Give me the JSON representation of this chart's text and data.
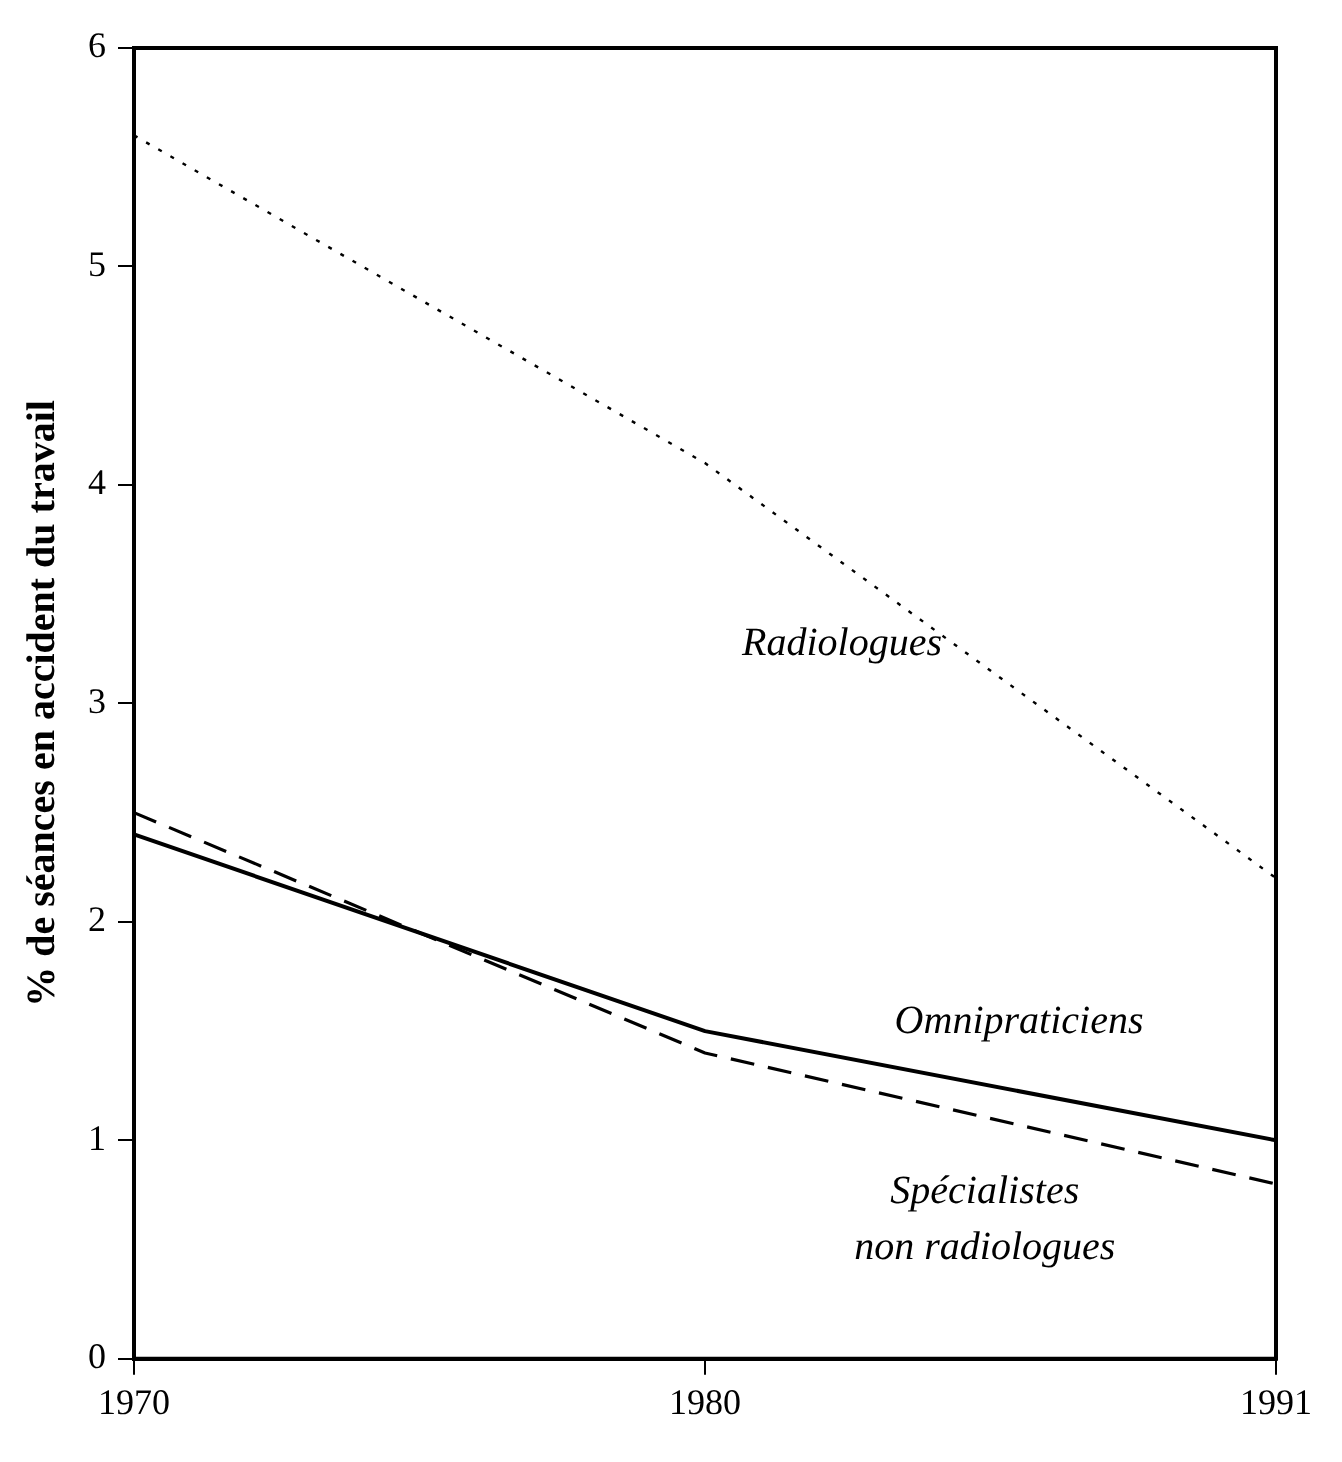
{
  "chart_data": {
    "type": "line",
    "ylabel": "% de séances en accident du travail",
    "categories": [
      "1970",
      "1980",
      "1991"
    ],
    "series": [
      {
        "name": "Radiologues",
        "color": "#000000",
        "line_style": "dotted",
        "values": [
          5.6,
          4.1,
          2.2
        ]
      },
      {
        "name": "Omnipraticiens",
        "color": "#000000",
        "line_style": "solid",
        "values": [
          2.4,
          1.5,
          1.0
        ]
      },
      {
        "name": "Spécialistes non radiologues",
        "color": "#000000",
        "line_style": "dashed",
        "values": [
          2.5,
          1.4,
          0.8
        ]
      }
    ],
    "ylim": [
      0,
      6
    ],
    "yticks": [
      0,
      1,
      2,
      3,
      4,
      5,
      6
    ],
    "grid": false,
    "legend": false,
    "marker": "none"
  }
}
